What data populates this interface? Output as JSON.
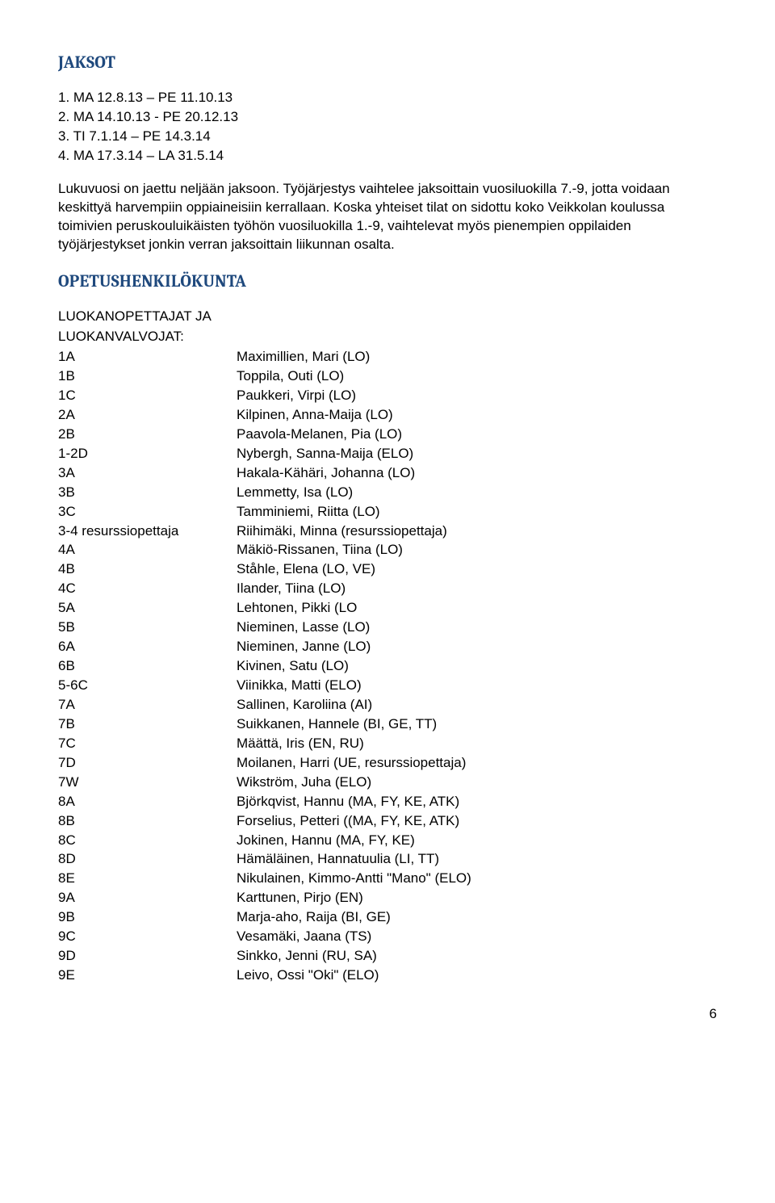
{
  "headings": {
    "jaksot": "JAKSOT",
    "opetushenkilokunta": "OPETUSHENKILÖKUNTA"
  },
  "jaksot_items": [
    "1. MA 12.8.13 – PE 11.10.13",
    "2. MA 14.10.13 - PE 20.12.13",
    "3. TI 7.1.14 – PE 14.3.14",
    "4. MA 17.3.14 – LA 31.5.14"
  ],
  "jaksot_para": "Lukuvuosi on jaettu neljään jaksoon. Työjärjestys vaihtelee jaksoittain vuosiluokilla 7.-9, jotta voidaan keskittyä harvempiin oppiaineisiin kerrallaan. Koska yhteiset tilat on sidottu koko Veikkolan koulussa toimivien peruskouluikäisten työhön vuosiluokilla 1.-9, vaihtelevat myös pienempien oppilaiden työjärjestykset jonkin verran jaksoittain liikunnan osalta.",
  "subheads": {
    "l1": "LUOKANOPETTAJAT JA",
    "l2": "LUOKANVALVOJAT:"
  },
  "staff": [
    {
      "k": "1A",
      "v": "Maximillien, Mari (LO)"
    },
    {
      "k": "1B",
      "v": "Toppila, Outi (LO)"
    },
    {
      "k": "1C",
      "v": "Paukkeri, Virpi (LO)"
    },
    {
      "k": "2A",
      "v": "Kilpinen, Anna-Maija (LO)"
    },
    {
      "k": "2B",
      "v": "Paavola-Melanen, Pia (LO)"
    },
    {
      "k": "1-2D",
      "v": "Nybergh, Sanna-Maija (ELO)"
    },
    {
      "k": "3A",
      "v": "Hakala-Kähäri, Johanna (LO)"
    },
    {
      "k": "3B",
      "v": "Lemmetty, Isa (LO)"
    },
    {
      "k": "3C",
      "v": "Tamminiemi, Riitta (LO)"
    },
    {
      "k": "3-4 resurssiopettaja",
      "v": "Riihimäki, Minna (resurssiopettaja)"
    },
    {
      "k": "4A",
      "v": "Mäkiö-Rissanen, Tiina (LO)"
    },
    {
      "k": "4B",
      "v": "Ståhle, Elena (LO, VE)"
    },
    {
      "k": "4C",
      "v": "Ilander, Tiina (LO)"
    },
    {
      "k": "5A",
      "v": "Lehtonen, Pikki (LO"
    },
    {
      "k": "5B",
      "v": "Nieminen, Lasse (LO)"
    },
    {
      "k": "6A",
      "v": "Nieminen, Janne (LO)"
    },
    {
      "k": "6B",
      "v": "Kivinen, Satu (LO)"
    },
    {
      "k": "5-6C",
      "v": "Viinikka, Matti (ELO)"
    },
    {
      "k": "7A",
      "v": "Sallinen, Karoliina (AI)"
    },
    {
      "k": "7B",
      "v": "Suikkanen, Hannele (BI, GE, TT)"
    },
    {
      "k": "7C",
      "v": "Määttä, Iris (EN, RU)"
    },
    {
      "k": "7D",
      "v": "Moilanen, Harri (UE, resurssiopettaja)"
    },
    {
      "k": "7W",
      "v": "Wikström, Juha (ELO)"
    },
    {
      "k": "8A",
      "v": "Björkqvist, Hannu (MA, FY, KE, ATK)"
    },
    {
      "k": "8B",
      "v": "Forselius, Petteri ((MA, FY, KE, ATK)"
    },
    {
      "k": "8C",
      "v": "Jokinen, Hannu (MA, FY, KE)"
    },
    {
      "k": "8D",
      "v": "Hämäläinen, Hannatuulia (LI, TT)"
    },
    {
      "k": "8E",
      "v": "Nikulainen, Kimmo-Antti \"Mano\" (ELO)"
    },
    {
      "k": "9A",
      "v": "Karttunen, Pirjo (EN)"
    },
    {
      "k": "9B",
      "v": "Marja-aho, Raija (BI, GE)"
    },
    {
      "k": "9C",
      "v": "Vesamäki, Jaana (TS)"
    },
    {
      "k": "9D",
      "v": "Sinkko, Jenni (RU, SA)"
    },
    {
      "k": "9E",
      "v": "Leivo, Ossi \"Oki\" (ELO)"
    }
  ],
  "page_number": "6",
  "colors": {
    "heading": "#1f497d",
    "text": "#000000",
    "background": "#ffffff"
  },
  "typography": {
    "body_font": "Arial",
    "heading_font": "Cambria",
    "body_fontsize_pt": 12,
    "heading_fontsize_pt": 15
  }
}
